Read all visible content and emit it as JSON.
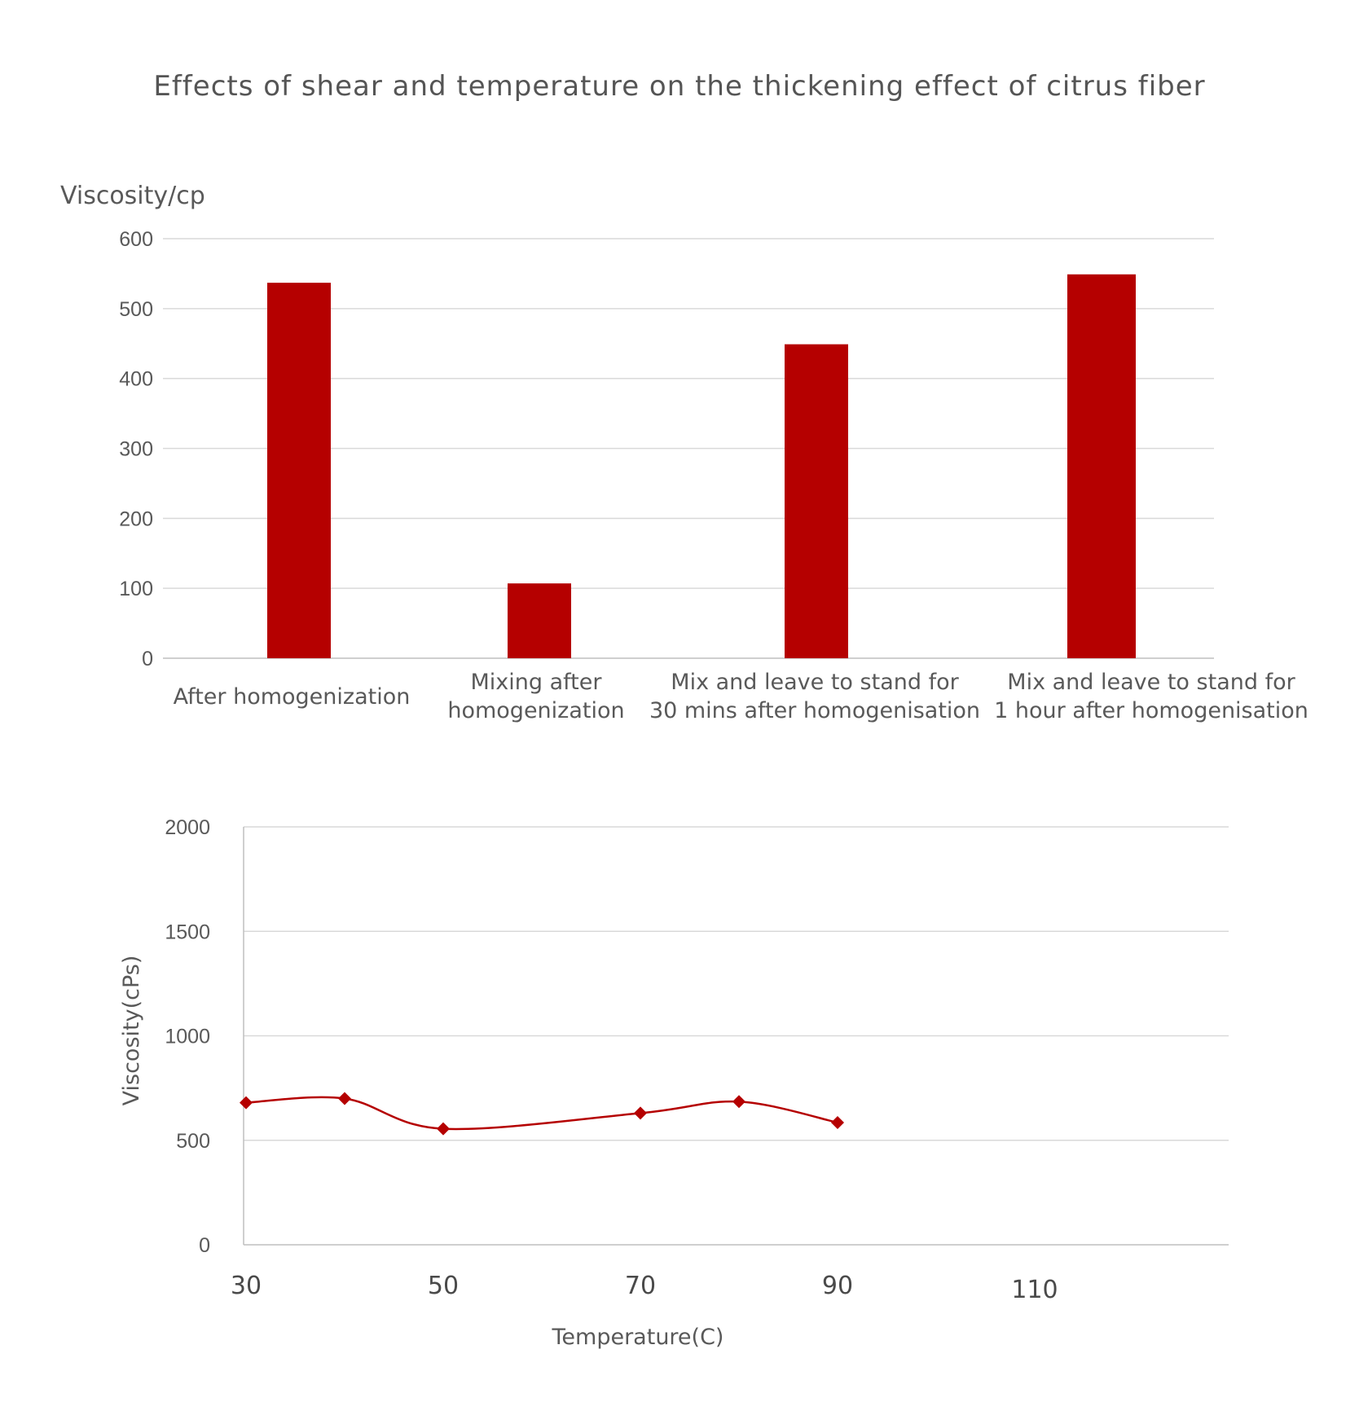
{
  "title": "Effects of shear and temperature on the thickening effect of citrus fiber",
  "colors": {
    "series": "#b50000",
    "grid": "#d9d9d9",
    "text": "#595959"
  },
  "chart_data": [
    {
      "type": "bar",
      "ylabel": "Viscosity/cp",
      "xlabel": "",
      "ylim": [
        0,
        600
      ],
      "yticks": [
        0,
        100,
        200,
        300,
        400,
        500,
        600
      ],
      "grid": true,
      "legend": "none",
      "categories": [
        [
          "After homogenization"
        ],
        [
          "Mixing after",
          "homogenization"
        ],
        [
          "Mix and leave to stand for",
          "30 mins after homogenisation"
        ],
        [
          "Mix and leave to stand for",
          "1 hour after homogenisation"
        ]
      ],
      "values": [
        537,
        107,
        449,
        549
      ]
    },
    {
      "type": "line",
      "ylabel": "Viscosity(cPs)",
      "xlabel": "Temperature(C)",
      "ylim": [
        0,
        2000
      ],
      "yticks": [
        0,
        500,
        1000,
        1500,
        2000
      ],
      "xticks": [
        30,
        50,
        70,
        90,
        110
      ],
      "grid": true,
      "legend": "none",
      "x": [
        30,
        40,
        50,
        70,
        80,
        90
      ],
      "y": [
        680,
        700,
        555,
        630,
        685,
        585
      ],
      "marker": "diamond"
    }
  ]
}
